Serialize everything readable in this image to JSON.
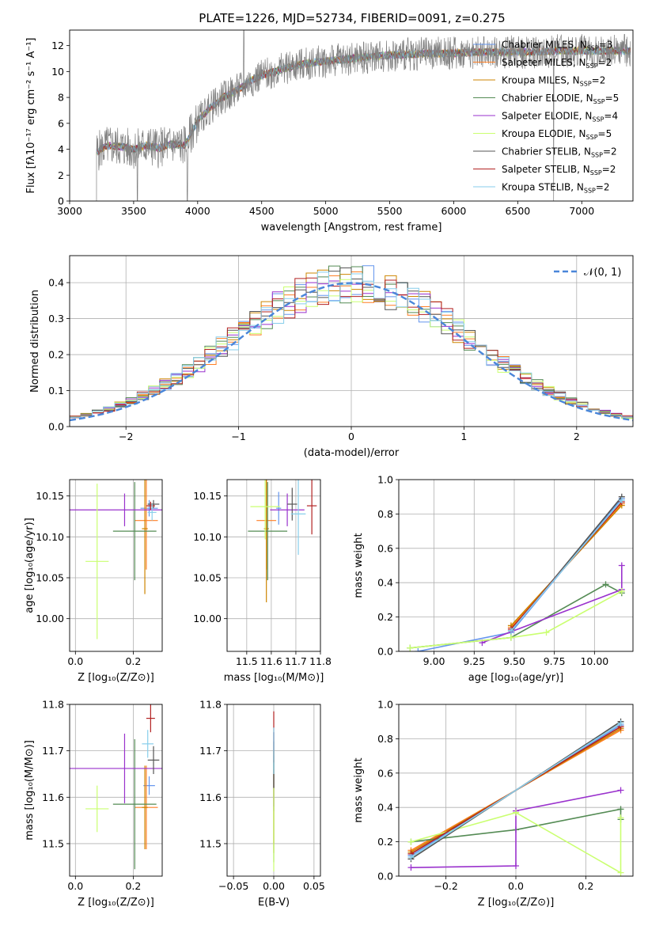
{
  "title": "PLATE=1226, MJD=52734, FIBERID=0091, z=0.275",
  "series_styles": [
    {
      "label": "Chabrier MILES",
      "nssp": "3",
      "color": "#6495ed"
    },
    {
      "label": "Salpeter MILES",
      "nssp": "2",
      "color": "#ff7f24"
    },
    {
      "label": "Kroupa MILES",
      "nssp": "2",
      "color": "#cd8500"
    },
    {
      "label": "Chabrier ELODIE",
      "nssp": "5",
      "color": "#548b54"
    },
    {
      "label": "Salpeter ELODIE",
      "nssp": "4",
      "color": "#9a32cd"
    },
    {
      "label": "Kroupa ELODIE",
      "nssp": "5",
      "color": "#caff70"
    },
    {
      "label": "Chabrier STELIB",
      "nssp": "2",
      "color": "#555555"
    },
    {
      "label": "Salpeter STELIB",
      "nssp": "2",
      "color": "#b22222"
    },
    {
      "label": "Kroupa STELIB",
      "nssp": "2",
      "color": "#87ceeb"
    }
  ],
  "chart_data": [
    {
      "id": "spectrum",
      "type": "line",
      "xlabel": "wavelength [Angstrom, rest frame]",
      "ylabel": "Flux [fλ10⁻¹⁷ erg cm⁻² s⁻¹ A⁻¹]",
      "xlim": [
        3000,
        7400
      ],
      "ylim": [
        0,
        13.2
      ],
      "xticks": [
        3000,
        3500,
        4000,
        4500,
        5000,
        5500,
        6000,
        6500,
        7000
      ],
      "yticks": [
        0,
        2,
        4,
        6,
        8,
        10,
        12
      ],
      "grid": false,
      "legend_position": "lower-right",
      "data_color": "#808080",
      "continuum": {
        "x": [
          3210,
          3300,
          3400,
          3500,
          3600,
          3700,
          3800,
          3900,
          4000,
          4100,
          4200,
          4300,
          4400,
          4500,
          4600,
          4700,
          4800,
          4900,
          5000,
          5200,
          5400,
          5600,
          5800,
          6000,
          6200,
          6400,
          6600,
          6800,
          7000,
          7200,
          7380
        ],
        "y": [
          3.8,
          4.3,
          4.2,
          4.0,
          4.3,
          4.1,
          4.4,
          4.3,
          6.2,
          7.2,
          8.0,
          8.5,
          9.2,
          9.7,
          10.0,
          10.3,
          10.5,
          10.7,
          10.8,
          11.0,
          11.2,
          11.3,
          11.4,
          11.4,
          11.5,
          11.5,
          11.5,
          11.6,
          11.6,
          11.6,
          11.6
        ]
      }
    },
    {
      "id": "residuals",
      "type": "histogram",
      "xlabel": "(data-model)/error",
      "ylabel": "Normed distribution",
      "xlim": [
        -2.5,
        2.5
      ],
      "ylim": [
        0,
        0.475
      ],
      "xticks": [
        -2,
        -1,
        0,
        1,
        2
      ],
      "yticks": [
        0.0,
        0.1,
        0.2,
        0.3,
        0.4
      ],
      "grid": true,
      "bin_width": 0.1,
      "legend_label": "𝒩(0, 1)",
      "legend_position": "top-right"
    },
    {
      "id": "age-vs-Z",
      "type": "errorbar",
      "xlabel": "Z [log₁₀(Z/Z⊙)]",
      "ylabel": "age  [log₁₀(age/yr)]",
      "xlim": [
        -0.02,
        0.3
      ],
      "ylim": [
        9.96,
        10.17
      ],
      "xticks": [
        0.0,
        0.2
      ],
      "yticks": [
        10.0,
        10.05,
        10.1,
        10.15
      ],
      "grid": true,
      "points": [
        {
          "s": 0,
          "x": 0.255,
          "y": 10.135,
          "xerr": 0.03,
          "yerr": 0.01
        },
        {
          "s": 1,
          "x": 0.245,
          "y": 10.12,
          "xerr": 0.04,
          "yerr": 0.06
        },
        {
          "s": 2,
          "x": 0.24,
          "y": 10.11,
          "xerr": 0.01,
          "yerr": 0.08
        },
        {
          "s": 3,
          "x": 0.205,
          "y": 10.107,
          "xerr": 0.075,
          "yerr": 0.06
        },
        {
          "s": 4,
          "x": 0.17,
          "y": 10.133,
          "xerr": 0.2,
          "yerr": 0.02
        },
        {
          "s": 5,
          "x": 0.075,
          "y": 10.07,
          "xerr": 0.04,
          "yerr": 0.095
        },
        {
          "s": 6,
          "x": 0.27,
          "y": 10.14,
          "xerr": 0.02,
          "yerr": 0.005
        },
        {
          "s": 7,
          "x": 0.26,
          "y": 10.138,
          "xerr": 0.015,
          "yerr": 0.005
        },
        {
          "s": 8,
          "x": 0.265,
          "y": 10.13,
          "xerr": 0.015,
          "yerr": 0.01
        }
      ]
    },
    {
      "id": "age-vs-mass",
      "type": "errorbar",
      "xlabel": "mass [log₁₀(M/M⊙)]",
      "ylabel": "",
      "xlim": [
        11.42,
        11.8
      ],
      "ylim": [
        9.96,
        10.17
      ],
      "xticks": [
        11.5,
        11.6,
        11.7,
        11.8
      ],
      "yticks": [
        10.0,
        10.05,
        10.1,
        10.15
      ],
      "grid": true,
      "points": [
        {
          "s": 0,
          "x": 11.63,
          "y": 10.135,
          "xerr": 0.01,
          "yerr": 0.02
        },
        {
          "s": 1,
          "x": 11.58,
          "y": 10.12,
          "xerr": 0.04,
          "yerr": 0.06
        },
        {
          "s": 2,
          "x": 11.58,
          "y": 10.11,
          "xerr": 0.01,
          "yerr": 0.09
        },
        {
          "s": 3,
          "x": 11.585,
          "y": 10.107,
          "xerr": 0.08,
          "yerr": 0.06
        },
        {
          "s": 4,
          "x": 11.665,
          "y": 10.133,
          "xerr": 0.07,
          "yerr": 0.02
        },
        {
          "s": 5,
          "x": 11.575,
          "y": 10.137,
          "xerr": 0.06,
          "yerr": 0.04
        },
        {
          "s": 6,
          "x": 11.685,
          "y": 10.14,
          "xerr": 0.02,
          "yerr": 0.02
        },
        {
          "s": 7,
          "x": 11.765,
          "y": 10.138,
          "xerr": 0.02,
          "yerr": 0.035
        },
        {
          "s": 8,
          "x": 11.71,
          "y": 10.128,
          "xerr": 0.03,
          "yerr": 0.05
        }
      ]
    },
    {
      "id": "weight-vs-age",
      "type": "line",
      "xlabel": "age  [log₁₀(age/yr)]",
      "ylabel": "mass weight",
      "xlim": [
        8.78,
        10.24
      ],
      "ylim": [
        0,
        1.0
      ],
      "xticks": [
        9.0,
        9.25,
        9.5,
        9.75,
        10.0
      ],
      "yticks": [
        0.0,
        0.2,
        0.4,
        0.6,
        0.8,
        1.0
      ],
      "grid": true,
      "series": [
        {
          "s": 0,
          "x": [
            8.9,
            9.48,
            10.17
          ],
          "y": [
            0.0,
            0.11,
            0.89
          ]
        },
        {
          "s": 1,
          "x": [
            9.48,
            10.17
          ],
          "y": [
            0.14,
            0.86
          ]
        },
        {
          "s": 2,
          "x": [
            9.48,
            10.17
          ],
          "y": [
            0.15,
            0.85
          ]
        },
        {
          "s": 3,
          "x": [
            8.85,
            9.48,
            10.07,
            10.17
          ],
          "y": [
            0.02,
            0.08,
            0.39,
            0.34
          ]
        },
        {
          "s": 4,
          "x": [
            9.3,
            10.17,
            10.17
          ],
          "y": [
            0.05,
            0.36,
            0.5
          ]
        },
        {
          "s": 5,
          "x": [
            8.85,
            9.48,
            9.7,
            10.17
          ],
          "y": [
            0.02,
            0.08,
            0.11,
            0.35
          ]
        },
        {
          "s": 6,
          "x": [
            9.48,
            10.17
          ],
          "y": [
            0.12,
            0.9
          ]
        },
        {
          "s": 7,
          "x": [
            9.48,
            10.17
          ],
          "y": [
            0.13,
            0.87
          ]
        },
        {
          "s": 8,
          "x": [
            9.48,
            10.17
          ],
          "y": [
            0.12,
            0.88
          ]
        }
      ]
    },
    {
      "id": "mass-vs-Z",
      "type": "errorbar",
      "xlabel": "Z [log₁₀(Z/Z⊙)]",
      "ylabel": "mass [log₁₀(M/M⊙)]",
      "xlim": [
        -0.02,
        0.3
      ],
      "ylim": [
        11.43,
        11.8
      ],
      "xticks": [
        0.0,
        0.2
      ],
      "yticks": [
        11.5,
        11.6,
        11.7,
        11.8
      ],
      "grid": true,
      "points": [
        {
          "s": 0,
          "x": 0.255,
          "y": 11.625,
          "xerr": 0.02,
          "yerr": 0.02
        },
        {
          "s": 1,
          "x": 0.245,
          "y": 11.578,
          "xerr": 0.04,
          "yerr": 0.09
        },
        {
          "s": 2,
          "x": 0.24,
          "y": 11.578,
          "xerr": 0.01,
          "yerr": 0.09
        },
        {
          "s": 3,
          "x": 0.205,
          "y": 11.585,
          "xerr": 0.075,
          "yerr": 0.14
        },
        {
          "s": 4,
          "x": 0.17,
          "y": 11.662,
          "xerr": 0.2,
          "yerr": 0.075
        },
        {
          "s": 5,
          "x": 0.075,
          "y": 11.575,
          "xerr": 0.04,
          "yerr": 0.05
        },
        {
          "s": 6,
          "x": 0.27,
          "y": 11.68,
          "xerr": 0.02,
          "yerr": 0.03
        },
        {
          "s": 7,
          "x": 0.26,
          "y": 11.77,
          "xerr": 0.015,
          "yerr": 0.03
        },
        {
          "s": 8,
          "x": 0.25,
          "y": 11.715,
          "xerr": 0.02,
          "yerr": 0.03
        }
      ]
    },
    {
      "id": "mass-vs-ebv",
      "type": "errorbar",
      "xlabel": "E(B-V)",
      "ylabel": "",
      "xlim": [
        -0.058,
        0.058
      ],
      "ylim": [
        11.43,
        11.8
      ],
      "xticks": [
        -0.05,
        0.0,
        0.05
      ],
      "yticks": [
        11.5,
        11.6,
        11.7,
        11.8
      ],
      "grid": true,
      "points": [
        {
          "s": 0,
          "x": 0,
          "y": 11.63,
          "xerr": 0,
          "yerr": 0.06
        },
        {
          "s": 1,
          "x": 0,
          "y": 11.58,
          "xerr": 0,
          "yerr": 0.08
        },
        {
          "s": 2,
          "x": 0,
          "y": 11.58,
          "xerr": 0,
          "yerr": 0.1
        },
        {
          "s": 3,
          "x": 0,
          "y": 11.59,
          "xerr": 0,
          "yerr": 0.13
        },
        {
          "s": 4,
          "x": 0,
          "y": 11.66,
          "xerr": 0,
          "yerr": 0.08
        },
        {
          "s": 5,
          "x": 0,
          "y": 11.57,
          "xerr": 0,
          "yerr": 0.13
        },
        {
          "s": 6,
          "x": 0,
          "y": 11.68,
          "xerr": 0,
          "yerr": 0.06
        },
        {
          "s": 7,
          "x": 0,
          "y": 11.73,
          "xerr": 0,
          "yerr": 0.055
        },
        {
          "s": 8,
          "x": 0,
          "y": 11.7,
          "xerr": 0,
          "yerr": 0.05
        }
      ]
    },
    {
      "id": "weight-vs-Z",
      "type": "line",
      "xlabel": "Z [log₁₀(Z/Z⊙)]",
      "ylabel": "mass weight",
      "xlim": [
        -0.335,
        0.335
      ],
      "ylim": [
        0,
        1.0
      ],
      "xticks": [
        -0.2,
        0.0,
        0.2
      ],
      "yticks": [
        0.0,
        0.2,
        0.4,
        0.6,
        0.8,
        1.0
      ],
      "grid": true,
      "series": [
        {
          "s": 0,
          "x": [
            -0.3,
            0.3
          ],
          "y": [
            0.12,
            0.88
          ]
        },
        {
          "s": 1,
          "x": [
            -0.3,
            0.3
          ],
          "y": [
            0.15,
            0.85
          ]
        },
        {
          "s": 2,
          "x": [
            -0.3,
            0.3
          ],
          "y": [
            0.14,
            0.86
          ]
        },
        {
          "s": 3,
          "x": [
            -0.3,
            0.0,
            0.3,
            0.3
          ],
          "y": [
            0.2,
            0.27,
            0.39,
            0.33
          ]
        },
        {
          "s": 4,
          "x": [
            -0.3,
            0.0,
            0.0,
            0.3
          ],
          "y": [
            0.05,
            0.06,
            0.38,
            0.5
          ]
        },
        {
          "s": 5,
          "x": [
            -0.3,
            0.0,
            0.3,
            0.3
          ],
          "y": [
            0.2,
            0.37,
            0.02,
            0.34
          ]
        },
        {
          "s": 6,
          "x": [
            -0.3,
            0.3
          ],
          "y": [
            0.1,
            0.9
          ]
        },
        {
          "s": 7,
          "x": [
            -0.3,
            0.3
          ],
          "y": [
            0.13,
            0.87
          ]
        },
        {
          "s": 8,
          "x": [
            -0.3,
            0.3
          ],
          "y": [
            0.11,
            0.89
          ]
        }
      ]
    }
  ]
}
